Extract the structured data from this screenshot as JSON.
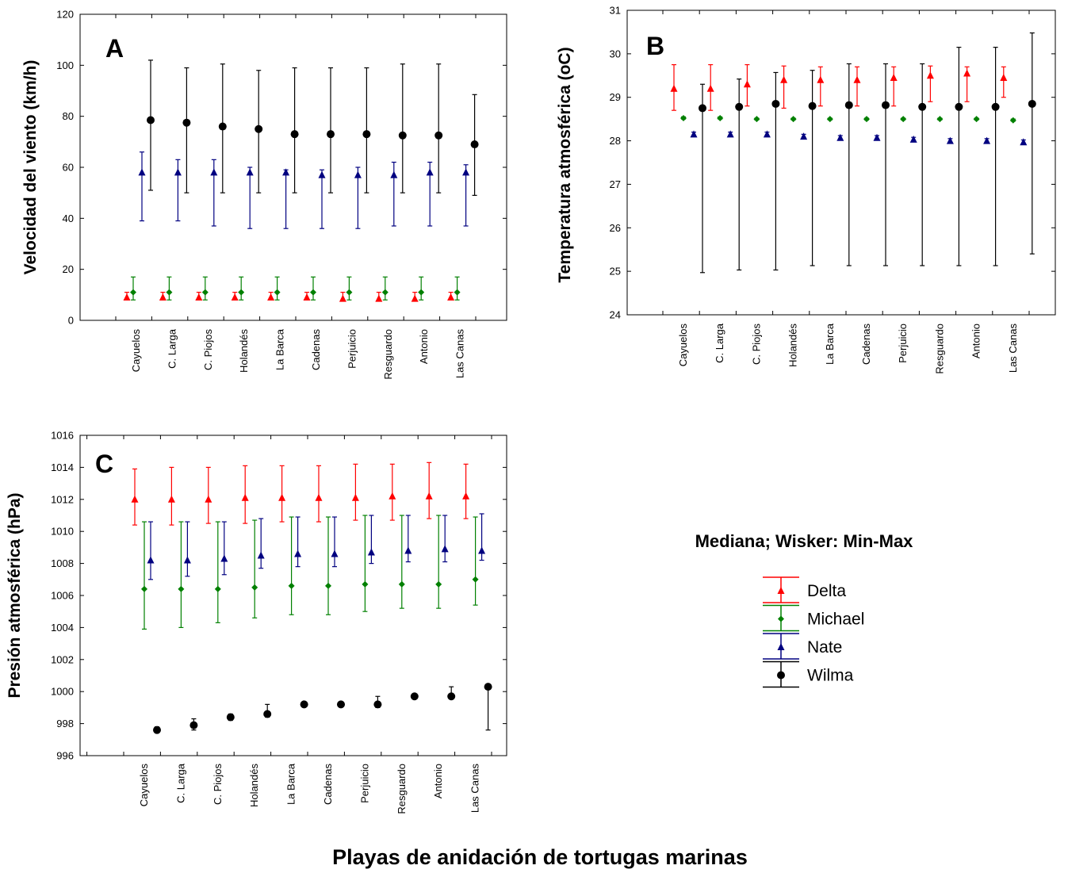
{
  "categories": [
    "Cayuelos",
    "C. Larga",
    "C. Piojos",
    "Holandés",
    "La Barca",
    "Cadenas",
    "Perjuicio",
    "Resguardo",
    "Antonio",
    "Las Canas"
  ],
  "series_styles": [
    {
      "name": "Delta",
      "color": "#ff0000",
      "marker": "triangle"
    },
    {
      "name": "Michael",
      "color": "#008000",
      "marker": "diamond"
    },
    {
      "name": "Nate",
      "color": "#000080",
      "marker": "triangle"
    },
    {
      "name": "Wilma",
      "color": "#000000",
      "marker": "circle"
    }
  ],
  "legend": {
    "title": "Mediana; Wisker: Min-Max"
  },
  "x_title": "Playas de anidación de tortugas marinas",
  "chart_data": [
    {
      "type": "scatter",
      "panel": "A",
      "ylabel": "Velocidad del viento (km/h)",
      "ylim": [
        0,
        120
      ],
      "yticks": [
        0,
        20,
        40,
        60,
        80,
        100,
        120
      ],
      "series": [
        {
          "name": "Delta",
          "median": [
            9,
            9,
            9,
            9,
            9,
            9,
            8.5,
            8.5,
            8.5,
            9
          ],
          "min": [
            8,
            8,
            8,
            8,
            8,
            8,
            7.5,
            7.5,
            7.5,
            8
          ],
          "max": [
            11,
            11,
            11,
            11,
            11,
            11,
            11,
            11,
            11,
            11
          ]
        },
        {
          "name": "Michael",
          "median": [
            11,
            11,
            11,
            11,
            11,
            11,
            11,
            11,
            11,
            11
          ],
          "min": [
            8,
            8,
            8,
            8,
            8,
            8,
            8,
            8,
            8,
            8
          ],
          "max": [
            17,
            17,
            17,
            17,
            17,
            17,
            17,
            17,
            17,
            17
          ]
        },
        {
          "name": "Nate",
          "median": [
            58,
            58,
            58,
            58,
            58,
            57,
            57,
            57,
            58,
            58
          ],
          "min": [
            39,
            39,
            37,
            36,
            36,
            36,
            36,
            37,
            37,
            37
          ],
          "max": [
            66,
            63,
            63,
            60,
            59,
            59,
            60,
            62,
            62,
            61
          ]
        },
        {
          "name": "Wilma",
          "median": [
            78.5,
            77.5,
            76,
            75,
            73,
            73,
            73,
            72.5,
            72.5,
            69
          ],
          "min": [
            51,
            50,
            50,
            50,
            50,
            50,
            50,
            50,
            50,
            49
          ],
          "max": [
            102,
            99,
            100.5,
            98,
            99,
            99,
            99,
            100.5,
            100.5,
            88.5
          ]
        }
      ]
    },
    {
      "type": "scatter",
      "panel": "B",
      "ylabel": "Temperatura atmosférica (oC)",
      "ylim": [
        24,
        31
      ],
      "yticks": [
        24,
        25,
        26,
        27,
        28,
        29,
        30,
        31
      ],
      "series": [
        {
          "name": "Delta",
          "median": [
            29.2,
            29.2,
            29.3,
            29.4,
            29.4,
            29.4,
            29.45,
            29.5,
            29.55,
            29.45
          ],
          "min": [
            28.7,
            28.7,
            28.8,
            28.75,
            28.8,
            28.8,
            28.8,
            28.9,
            28.9,
            29.0
          ],
          "max": [
            29.75,
            29.75,
            29.75,
            29.72,
            29.7,
            29.7,
            29.7,
            29.72,
            29.7,
            29.7
          ]
        },
        {
          "name": "Michael",
          "median": [
            28.52,
            28.52,
            28.5,
            28.5,
            28.5,
            28.5,
            28.5,
            28.5,
            28.5,
            28.47
          ],
          "min": [
            28.5,
            28.5,
            28.48,
            28.48,
            28.48,
            28.48,
            28.48,
            28.48,
            28.48,
            28.45
          ],
          "max": [
            28.55,
            28.55,
            28.52,
            28.52,
            28.52,
            28.52,
            28.52,
            28.52,
            28.52,
            28.5
          ]
        },
        {
          "name": "Nate",
          "median": [
            28.15,
            28.15,
            28.15,
            28.1,
            28.07,
            28.07,
            28.03,
            28.0,
            28.0,
            27.97
          ],
          "min": [
            28.1,
            28.1,
            28.1,
            28.05,
            28.02,
            28.02,
            27.98,
            27.95,
            27.95,
            27.92
          ],
          "max": [
            28.2,
            28.2,
            28.2,
            28.15,
            28.12,
            28.12,
            28.08,
            28.05,
            28.05,
            28.02
          ]
        },
        {
          "name": "Wilma",
          "median": [
            28.75,
            28.78,
            28.85,
            28.8,
            28.82,
            28.82,
            28.78,
            28.78,
            28.78,
            28.85
          ],
          "min": [
            24.97,
            25.03,
            25.03,
            25.13,
            25.13,
            25.13,
            25.13,
            25.13,
            25.13,
            25.4
          ],
          "max": [
            29.3,
            29.42,
            29.57,
            29.62,
            29.77,
            29.77,
            29.77,
            30.15,
            30.15,
            30.48
          ]
        }
      ]
    },
    {
      "type": "scatter",
      "panel": "C",
      "ylabel": "Presión atmosférica (hPa)",
      "ylim": [
        996,
        1016
      ],
      "yticks": [
        996,
        998,
        1000,
        1002,
        1004,
        1006,
        1008,
        1010,
        1012,
        1014,
        1016
      ],
      "series": [
        {
          "name": "Delta",
          "median": [
            1012,
            1012,
            1012,
            1012.1,
            1012.1,
            1012.1,
            1012.1,
            1012.2,
            1012.2,
            1012.2
          ],
          "min": [
            1010.4,
            1010.4,
            1010.5,
            1010.5,
            1010.6,
            1010.6,
            1010.7,
            1010.7,
            1010.8,
            1010.8
          ],
          "max": [
            1013.9,
            1014,
            1014,
            1014.1,
            1014.1,
            1014.1,
            1014.2,
            1014.2,
            1014.3,
            1014.2
          ]
        },
        {
          "name": "Michael",
          "median": [
            1006.4,
            1006.4,
            1006.4,
            1006.5,
            1006.6,
            1006.6,
            1006.7,
            1006.7,
            1006.7,
            1007
          ],
          "min": [
            1003.9,
            1004,
            1004.3,
            1004.6,
            1004.8,
            1004.8,
            1005,
            1005.2,
            1005.2,
            1005.4
          ],
          "max": [
            1010.6,
            1010.6,
            1010.6,
            1010.7,
            1010.9,
            1010.9,
            1011,
            1011,
            1011,
            1010.9
          ]
        },
        {
          "name": "Nate",
          "median": [
            1008.2,
            1008.2,
            1008.3,
            1008.5,
            1008.6,
            1008.6,
            1008.7,
            1008.8,
            1008.9,
            1008.8
          ],
          "min": [
            1007,
            1007.2,
            1007.3,
            1007.7,
            1007.8,
            1007.8,
            1008,
            1008.1,
            1008.1,
            1008.2
          ],
          "max": [
            1010.6,
            1010.6,
            1010.6,
            1010.8,
            1010.9,
            1010.9,
            1011,
            1011,
            1011,
            1011.1
          ]
        },
        {
          "name": "Wilma",
          "median": [
            997.6,
            997.9,
            998.4,
            998.6,
            999.2,
            999.2,
            999.2,
            999.7,
            999.7,
            1000.3
          ],
          "min": [
            997.5,
            997.6,
            998.2,
            998.4,
            999.1,
            999.1,
            999,
            999.6,
            999.6,
            997.6
          ],
          "max": [
            997.8,
            998.3,
            998.6,
            999.2,
            999.2,
            999.2,
            999.7,
            999.8,
            1000.3,
            1000.3
          ]
        }
      ]
    }
  ]
}
